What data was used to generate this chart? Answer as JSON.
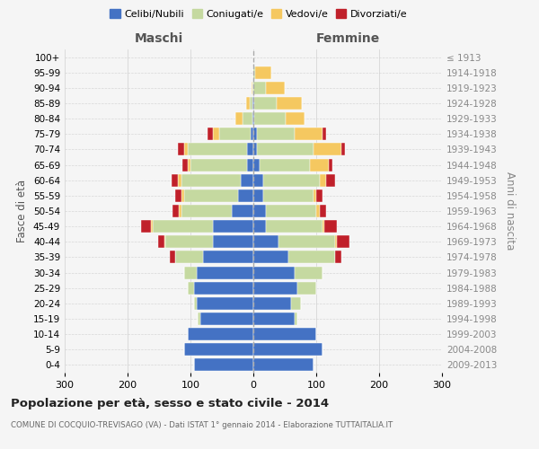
{
  "age_groups": [
    "0-4",
    "5-9",
    "10-14",
    "15-19",
    "20-24",
    "25-29",
    "30-34",
    "35-39",
    "40-44",
    "45-49",
    "50-54",
    "55-59",
    "60-64",
    "65-69",
    "70-74",
    "75-79",
    "80-84",
    "85-89",
    "90-94",
    "95-99",
    "100+"
  ],
  "birth_years": [
    "2009-2013",
    "2004-2008",
    "1999-2003",
    "1994-1998",
    "1989-1993",
    "1984-1988",
    "1979-1983",
    "1974-1978",
    "1969-1973",
    "1964-1968",
    "1959-1963",
    "1954-1958",
    "1949-1953",
    "1944-1948",
    "1939-1943",
    "1934-1938",
    "1929-1933",
    "1924-1928",
    "1919-1923",
    "1914-1918",
    "≤ 1913"
  ],
  "colors": {
    "celibe": "#4472c4",
    "coniugato": "#c5d9a0",
    "vedovo": "#f5c860",
    "divorziato": "#c0202a"
  },
  "maschi": {
    "celibe": [
      95,
      110,
      105,
      85,
      90,
      95,
      90,
      80,
      65,
      65,
      35,
      25,
      20,
      10,
      10,
      5,
      2,
      1,
      0,
      0,
      0
    ],
    "coniugato": [
      0,
      0,
      0,
      3,
      5,
      10,
      20,
      45,
      75,
      95,
      80,
      85,
      95,
      90,
      95,
      50,
      15,
      5,
      2,
      0,
      0
    ],
    "vedovo": [
      0,
      0,
      0,
      0,
      0,
      0,
      0,
      0,
      2,
      3,
      3,
      5,
      5,
      5,
      5,
      10,
      12,
      5,
      1,
      0,
      0
    ],
    "divorziato": [
      0,
      0,
      0,
      0,
      0,
      0,
      0,
      8,
      10,
      15,
      10,
      10,
      10,
      8,
      10,
      8,
      0,
      0,
      0,
      0,
      0
    ]
  },
  "femmine": {
    "nubile": [
      95,
      110,
      100,
      65,
      60,
      70,
      65,
      55,
      40,
      20,
      20,
      15,
      15,
      10,
      5,
      5,
      2,
      2,
      0,
      0,
      0
    ],
    "coniugata": [
      0,
      0,
      0,
      5,
      15,
      30,
      45,
      75,
      90,
      90,
      80,
      80,
      90,
      80,
      90,
      60,
      50,
      35,
      20,
      3,
      0
    ],
    "vedova": [
      0,
      0,
      0,
      0,
      0,
      0,
      0,
      0,
      3,
      3,
      5,
      5,
      10,
      30,
      45,
      45,
      30,
      40,
      30,
      25,
      0
    ],
    "divorziata": [
      0,
      0,
      0,
      0,
      0,
      0,
      0,
      10,
      20,
      20,
      10,
      10,
      15,
      5,
      5,
      5,
      0,
      0,
      0,
      0,
      0
    ]
  },
  "xlim": 300,
  "title": "Popolazione per età, sesso e stato civile - 2014",
  "subtitle": "COMUNE DI COCQUIO-TREVISAGO (VA) - Dati ISTAT 1° gennaio 2014 - Elaborazione TUTTAITALIA.IT",
  "xlabel_left": "Maschi",
  "xlabel_right": "Femmine",
  "ylabel_left": "Fasce di età",
  "ylabel_right": "Anni di nascita",
  "legend_labels": [
    "Celibi/Nubili",
    "Coniugati/e",
    "Vedovi/e",
    "Divorziati/e"
  ],
  "bg_color": "#f5f5f5",
  "grid_color": "#cccccc"
}
